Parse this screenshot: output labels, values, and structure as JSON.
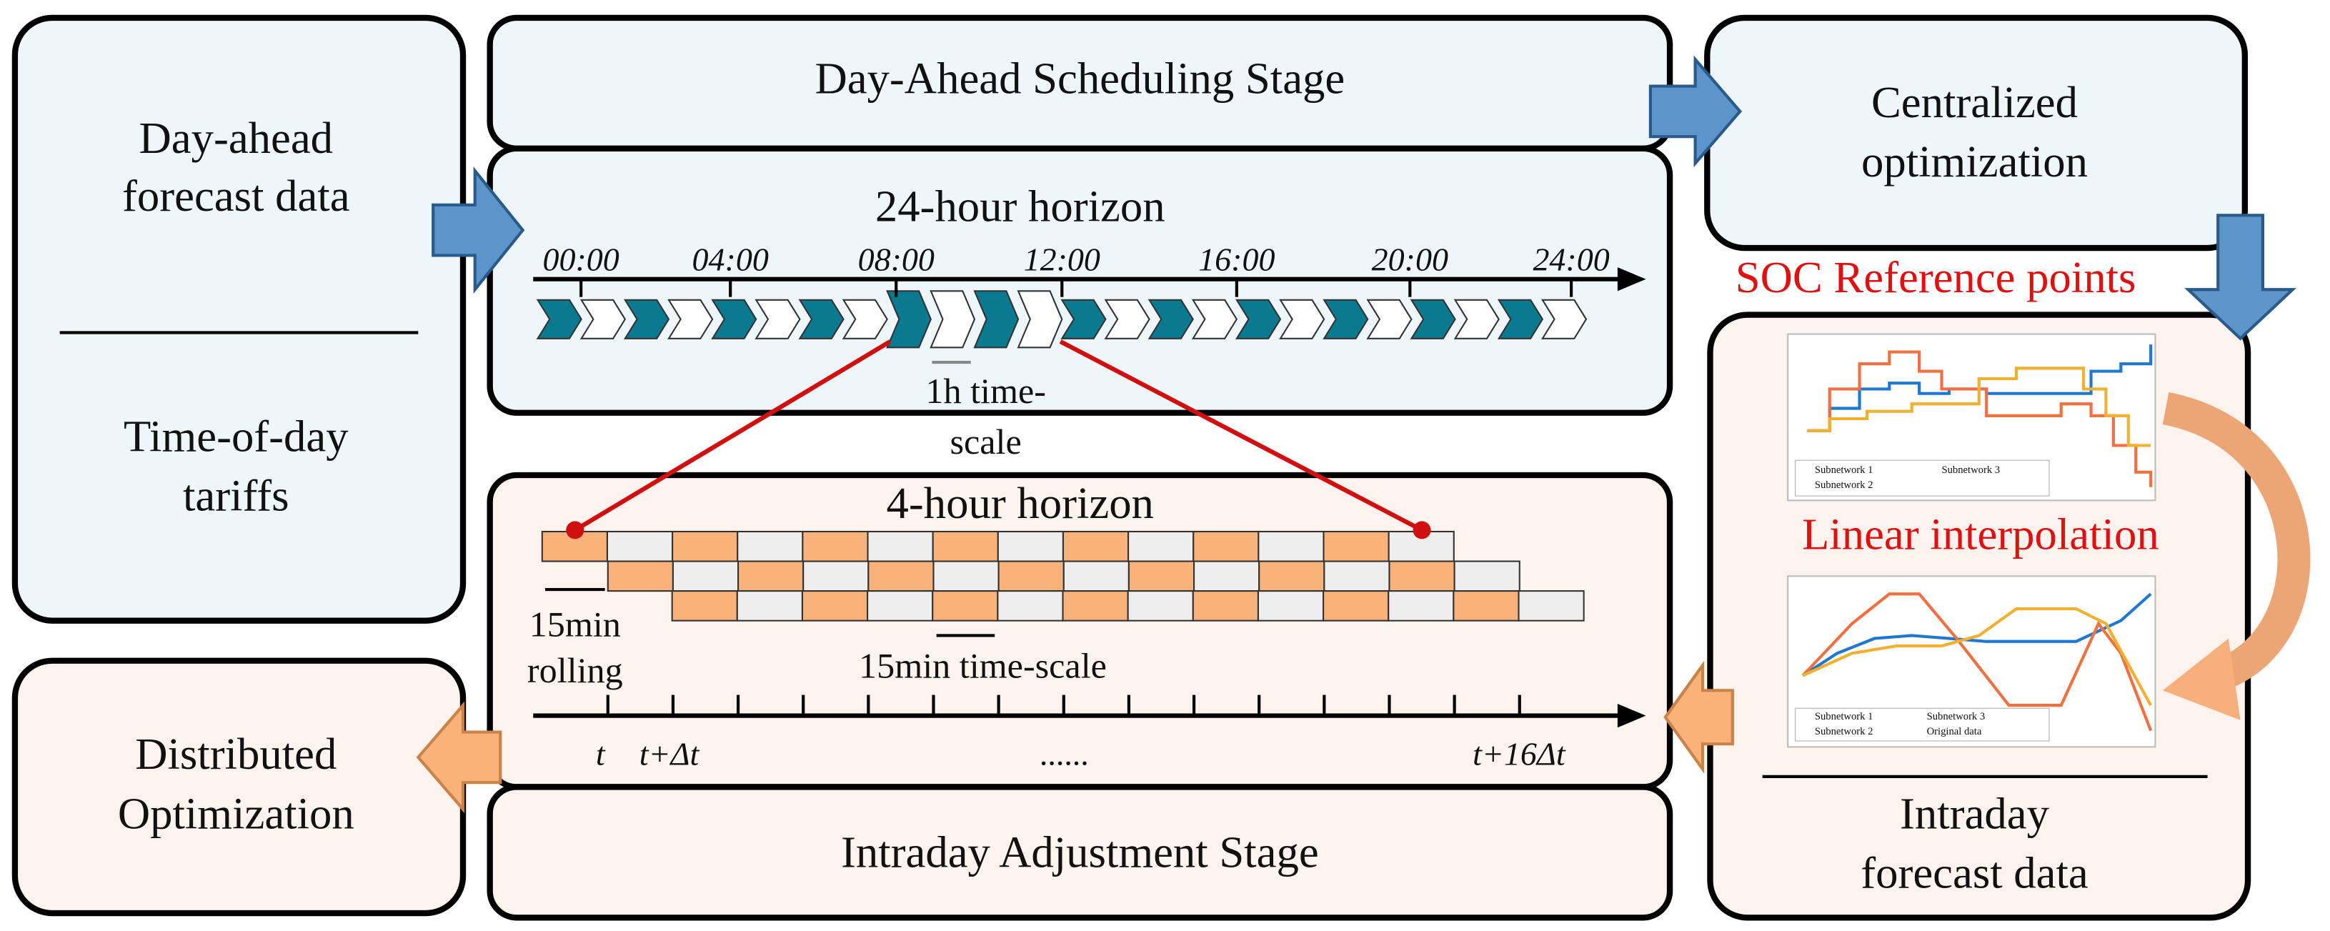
{
  "left_panel": {
    "forecast": [
      "Day-ahead",
      "forecast data"
    ],
    "tariffs": [
      "Time-of-day",
      "tariffs"
    ]
  },
  "day_ahead_stage": {
    "title": "Day-Ahead Scheduling Stage",
    "horizon": "24-hour horizon",
    "time_labels": [
      "00:00",
      "04:00",
      "08:00",
      "12:00",
      "16:00",
      "20:00",
      "24:00"
    ],
    "timescale": [
      "1h time-",
      "scale"
    ]
  },
  "centralized": [
    "Centralized",
    "optimization"
  ],
  "soc_label": "SOC Reference points",
  "interpolation": {
    "label": "Linear interpolation",
    "chart1_legend": [
      "Subnetwork 1",
      "Subnetwork 3",
      "Subnetwork 2"
    ],
    "chart2_legend": [
      "Subnetwork 1",
      "Subnetwork 3",
      "Subnetwork 2",
      "Original data"
    ]
  },
  "intraday_forecast": [
    "Intraday",
    "forecast data"
  ],
  "intraday_stage": {
    "title": "Intraday Adjustment Stage",
    "horizon": "4-hour horizon",
    "rolling": [
      "15min",
      "rolling"
    ],
    "timescale": "15min time-scale",
    "axis_labels": [
      "t",
      "t+Δt",
      "......",
      "t+16Δt"
    ]
  },
  "distributed": [
    "Distributed",
    "Optimization"
  ]
}
